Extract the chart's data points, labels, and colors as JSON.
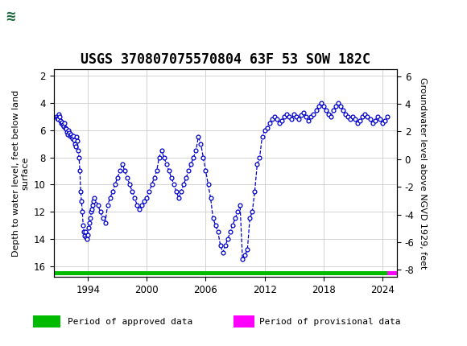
{
  "title": "USGS 370807075570804 63F 53 SOW 182C",
  "ylabel_left": "Depth to water level, feet below land\nsurface",
  "ylabel_right": "Groundwater level above NGVD 1929, feet",
  "ylim_left": [
    16.8,
    1.5
  ],
  "ylim_right": [
    -8.5,
    6.5
  ],
  "yticks_left": [
    2,
    4,
    6,
    8,
    10,
    12,
    14,
    16
  ],
  "yticks_right": [
    6,
    4,
    2,
    0,
    -2,
    -4,
    -6,
    -8
  ],
  "xlim": [
    1990.5,
    2025.5
  ],
  "xticks": [
    1994,
    2000,
    2006,
    2012,
    2018,
    2024
  ],
  "header_color": "#1a6b3c",
  "header_text_color": "#ffffff",
  "line_color": "#0000cc",
  "marker_color": "#0000cc",
  "approved_color": "#00bb00",
  "provisional_color": "#ff00ff",
  "background_color": "#ffffff",
  "grid_color": "#cccccc",
  "data_points": [
    [
      1990.75,
      5.0
    ],
    [
      1990.83,
      5.1
    ],
    [
      1990.92,
      5.2
    ],
    [
      1991.0,
      4.8
    ],
    [
      1991.08,
      5.0
    ],
    [
      1991.17,
      5.3
    ],
    [
      1991.25,
      5.5
    ],
    [
      1991.33,
      5.4
    ],
    [
      1991.42,
      5.6
    ],
    [
      1991.5,
      5.7
    ],
    [
      1991.58,
      5.5
    ],
    [
      1991.67,
      5.8
    ],
    [
      1991.75,
      5.9
    ],
    [
      1991.83,
      6.1
    ],
    [
      1991.92,
      6.3
    ],
    [
      1992.0,
      6.0
    ],
    [
      1992.08,
      6.2
    ],
    [
      1992.17,
      6.4
    ],
    [
      1992.25,
      6.3
    ],
    [
      1992.33,
      6.5
    ],
    [
      1992.42,
      6.6
    ],
    [
      1992.5,
      6.4
    ],
    [
      1992.58,
      6.7
    ],
    [
      1992.67,
      7.0
    ],
    [
      1992.75,
      7.2
    ],
    [
      1992.83,
      6.5
    ],
    [
      1992.92,
      6.8
    ],
    [
      1993.0,
      7.5
    ],
    [
      1993.08,
      8.0
    ],
    [
      1993.17,
      9.0
    ],
    [
      1993.25,
      10.5
    ],
    [
      1993.33,
      11.2
    ],
    [
      1993.42,
      12.0
    ],
    [
      1993.5,
      13.0
    ],
    [
      1993.58,
      13.5
    ],
    [
      1993.67,
      13.8
    ],
    [
      1993.75,
      13.5
    ],
    [
      1993.83,
      13.9
    ],
    [
      1993.92,
      14.0
    ],
    [
      1994.0,
      13.7
    ],
    [
      1994.08,
      13.2
    ],
    [
      1994.17,
      12.8
    ],
    [
      1994.25,
      12.5
    ],
    [
      1994.33,
      12.0
    ],
    [
      1994.42,
      11.8
    ],
    [
      1994.5,
      11.5
    ],
    [
      1994.58,
      11.2
    ],
    [
      1994.67,
      11.0
    ],
    [
      1995.0,
      11.5
    ],
    [
      1995.25,
      12.0
    ],
    [
      1995.5,
      12.5
    ],
    [
      1995.75,
      12.8
    ],
    [
      1996.0,
      11.5
    ],
    [
      1996.25,
      11.0
    ],
    [
      1996.5,
      10.5
    ],
    [
      1996.75,
      10.0
    ],
    [
      1997.0,
      9.5
    ],
    [
      1997.25,
      9.0
    ],
    [
      1997.5,
      8.5
    ],
    [
      1997.75,
      9.0
    ],
    [
      1998.0,
      9.5
    ],
    [
      1998.25,
      10.0
    ],
    [
      1998.5,
      10.5
    ],
    [
      1998.75,
      11.0
    ],
    [
      1999.0,
      11.5
    ],
    [
      1999.25,
      11.8
    ],
    [
      1999.5,
      11.5
    ],
    [
      1999.75,
      11.2
    ],
    [
      2000.0,
      11.0
    ],
    [
      2000.25,
      10.5
    ],
    [
      2000.5,
      10.0
    ],
    [
      2000.75,
      9.5
    ],
    [
      2001.0,
      9.0
    ],
    [
      2001.25,
      8.0
    ],
    [
      2001.5,
      7.5
    ],
    [
      2001.75,
      8.0
    ],
    [
      2002.0,
      8.5
    ],
    [
      2002.25,
      9.0
    ],
    [
      2002.5,
      9.5
    ],
    [
      2002.75,
      10.0
    ],
    [
      2003.0,
      10.5
    ],
    [
      2003.25,
      11.0
    ],
    [
      2003.5,
      10.5
    ],
    [
      2003.75,
      10.0
    ],
    [
      2004.0,
      9.5
    ],
    [
      2004.25,
      9.0
    ],
    [
      2004.5,
      8.5
    ],
    [
      2004.75,
      8.0
    ],
    [
      2005.0,
      7.5
    ],
    [
      2005.25,
      6.5
    ],
    [
      2005.5,
      7.0
    ],
    [
      2005.75,
      8.0
    ],
    [
      2006.0,
      9.0
    ],
    [
      2006.25,
      10.0
    ],
    [
      2006.5,
      11.0
    ],
    [
      2006.75,
      12.5
    ],
    [
      2007.0,
      13.0
    ],
    [
      2007.25,
      13.5
    ],
    [
      2007.5,
      14.5
    ],
    [
      2007.75,
      15.0
    ],
    [
      2008.0,
      14.5
    ],
    [
      2008.25,
      14.0
    ],
    [
      2008.5,
      13.5
    ],
    [
      2008.75,
      13.0
    ],
    [
      2009.0,
      12.5
    ],
    [
      2009.25,
      12.0
    ],
    [
      2009.5,
      11.5
    ],
    [
      2009.75,
      15.5
    ],
    [
      2010.0,
      15.2
    ],
    [
      2010.25,
      14.8
    ],
    [
      2010.5,
      12.5
    ],
    [
      2010.75,
      12.0
    ],
    [
      2011.0,
      10.5
    ],
    [
      2011.25,
      8.5
    ],
    [
      2011.5,
      8.0
    ],
    [
      2011.75,
      6.5
    ],
    [
      2012.0,
      6.0
    ],
    [
      2012.25,
      5.8
    ],
    [
      2012.5,
      5.5
    ],
    [
      2012.75,
      5.2
    ],
    [
      2013.0,
      5.0
    ],
    [
      2013.25,
      5.2
    ],
    [
      2013.5,
      5.5
    ],
    [
      2013.75,
      5.3
    ],
    [
      2014.0,
      5.0
    ],
    [
      2014.25,
      4.8
    ],
    [
      2014.5,
      5.0
    ],
    [
      2014.75,
      5.2
    ],
    [
      2015.0,
      4.8
    ],
    [
      2015.25,
      5.0
    ],
    [
      2015.5,
      5.2
    ],
    [
      2015.75,
      4.9
    ],
    [
      2016.0,
      4.7
    ],
    [
      2016.25,
      5.0
    ],
    [
      2016.5,
      5.3
    ],
    [
      2016.75,
      5.0
    ],
    [
      2017.0,
      4.8
    ],
    [
      2017.25,
      4.5
    ],
    [
      2017.5,
      4.2
    ],
    [
      2017.75,
      4.0
    ],
    [
      2018.0,
      4.2
    ],
    [
      2018.25,
      4.5
    ],
    [
      2018.5,
      4.8
    ],
    [
      2018.75,
      5.0
    ],
    [
      2019.0,
      4.5
    ],
    [
      2019.25,
      4.2
    ],
    [
      2019.5,
      4.0
    ],
    [
      2019.75,
      4.2
    ],
    [
      2020.0,
      4.5
    ],
    [
      2020.25,
      4.8
    ],
    [
      2020.5,
      5.0
    ],
    [
      2020.75,
      5.2
    ],
    [
      2021.0,
      5.0
    ],
    [
      2021.25,
      5.2
    ],
    [
      2021.5,
      5.5
    ],
    [
      2021.75,
      5.3
    ],
    [
      2022.0,
      5.0
    ],
    [
      2022.25,
      4.8
    ],
    [
      2022.5,
      5.0
    ],
    [
      2022.75,
      5.2
    ],
    [
      2023.0,
      5.5
    ],
    [
      2023.25,
      5.3
    ],
    [
      2023.5,
      5.0
    ],
    [
      2023.75,
      5.2
    ],
    [
      2024.0,
      5.5
    ],
    [
      2024.25,
      5.3
    ],
    [
      2024.5,
      5.0
    ]
  ],
  "approved_bar_start": 1990.5,
  "approved_bar_end": 2024.5,
  "provisional_bar_start": 2024.5,
  "provisional_bar_end": 2025.5,
  "bar_y_center": 16.55,
  "bar_height": 0.28,
  "title_fontsize": 12,
  "axis_fontsize": 8,
  "tick_fontsize": 8.5,
  "legend_fontsize": 8
}
